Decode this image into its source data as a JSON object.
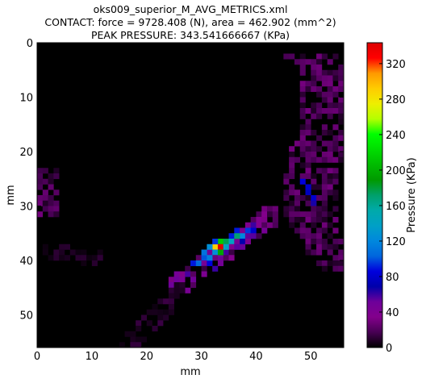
{
  "figure": {
    "title_lines": [
      "oks009_superior_M_AVG_METRICS.xml",
      "CONTACT: force = 9728.408 (N), area = 462.902 (mm^2)",
      "PEAK PRESSURE: 343.541666667 (KPa)"
    ]
  },
  "chart_data": {
    "type": "heatmap",
    "title": "oks009_superior_M_AVG_METRICS.xml / CONTACT: force = 9728.408 (N), area = 462.902 (mm^2) / PEAK PRESSURE: 343.541666667 (KPa)",
    "xlabel": "mm",
    "ylabel": "mm",
    "xlim": [
      0,
      56
    ],
    "ylim": [
      56,
      0
    ],
    "x_ticks": [
      "0",
      "10",
      "20",
      "30",
      "40",
      "50"
    ],
    "y_ticks": [
      "0",
      "10",
      "20",
      "30",
      "40",
      "50"
    ],
    "colorbar": {
      "label": "Pressure (KPa)",
      "colormap": "nipy_spectral",
      "range": [
        0,
        343.541666667
      ],
      "ticks": [
        "0",
        "40",
        "80",
        "120",
        "160",
        "200",
        "240",
        "280",
        "320"
      ]
    },
    "peak_pressure_kpa": 343.541666667,
    "peak_location_mm": {
      "x": 33,
      "y": 37
    },
    "regions": [
      {
        "name": "right arc",
        "x_range": [
          45,
          56
        ],
        "y_range": [
          2,
          42
        ],
        "typical_kpa": 20,
        "max_kpa": 90
      },
      {
        "name": "central diagonal band",
        "x_range": [
          24,
          44
        ],
        "y_range": [
          30,
          46
        ],
        "typical_kpa": 40,
        "max_kpa": 343.5
      },
      {
        "name": "lower-left diagonal band",
        "x_range": [
          15,
          27
        ],
        "y_range": [
          44,
          56
        ],
        "typical_kpa": 10,
        "max_kpa": 25
      },
      {
        "name": "left edge strip",
        "x_range": [
          0,
          4
        ],
        "y_range": [
          23,
          32
        ],
        "typical_kpa": 20,
        "max_kpa": 35
      },
      {
        "name": "left faint band",
        "x_range": [
          1,
          12
        ],
        "y_range": [
          36,
          41
        ],
        "typical_kpa": 8,
        "max_kpa": 15
      }
    ],
    "hot_cells": [
      {
        "x": 33,
        "y": 37,
        "v": 343.5
      },
      {
        "x": 32,
        "y": 37,
        "v": 290
      },
      {
        "x": 33,
        "y": 36,
        "v": 215
      },
      {
        "x": 34,
        "y": 36,
        "v": 175
      },
      {
        "x": 33,
        "y": 38,
        "v": 195
      },
      {
        "x": 36,
        "y": 35,
        "v": 170
      },
      {
        "x": 34,
        "y": 37,
        "v": 140
      },
      {
        "x": 35,
        "y": 36,
        "v": 140
      },
      {
        "x": 31,
        "y": 37,
        "v": 125
      },
      {
        "x": 32,
        "y": 38,
        "v": 125
      },
      {
        "x": 30,
        "y": 38,
        "v": 110
      },
      {
        "x": 31,
        "y": 39,
        "v": 115
      },
      {
        "x": 30,
        "y": 39,
        "v": 100
      },
      {
        "x": 29,
        "y": 40,
        "v": 105
      },
      {
        "x": 28,
        "y": 40,
        "v": 90
      },
      {
        "x": 31,
        "y": 40,
        "v": 85
      },
      {
        "x": 37,
        "y": 35,
        "v": 120
      },
      {
        "x": 38,
        "y": 34,
        "v": 95
      },
      {
        "x": 39,
        "y": 34,
        "v": 80
      },
      {
        "x": 32,
        "y": 36,
        "v": 95
      },
      {
        "x": 36,
        "y": 34,
        "v": 90
      },
      {
        "x": 37,
        "y": 36,
        "v": 70
      },
      {
        "x": 35,
        "y": 35,
        "v": 90
      },
      {
        "x": 48,
        "y": 25,
        "v": 85
      },
      {
        "x": 49,
        "y": 26,
        "v": 80
      },
      {
        "x": 49,
        "y": 27,
        "v": 75
      },
      {
        "x": 50,
        "y": 28,
        "v": 80
      },
      {
        "x": 50,
        "y": 29,
        "v": 65
      }
    ]
  }
}
